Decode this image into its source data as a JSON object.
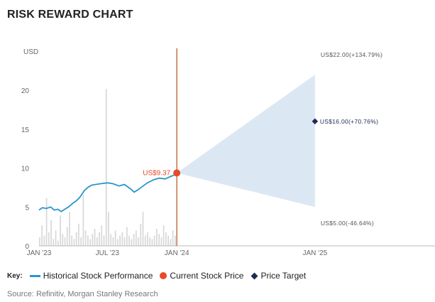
{
  "title": "RISK REWARD CHART",
  "key": {
    "label": "Key:",
    "items": [
      {
        "label": "Historical Stock Performance",
        "icon": "line-icon",
        "color": "#2a96cc"
      },
      {
        "label": "Current Stock Price",
        "icon": "dot-icon",
        "color": "#e84a2a"
      },
      {
        "label": "Price Target",
        "icon": "diamond-icon",
        "color": "#1f2a55"
      }
    ]
  },
  "source": "Source: Refinitiv, Morgan Stanley Research",
  "chart_data": {
    "type": "line",
    "ylabel": "USD",
    "ylim": [
      0,
      25
    ],
    "yticks": [
      0,
      5,
      10,
      15,
      20
    ],
    "x_ticks": [
      {
        "date": "2023-01-01",
        "label": "JAN '23"
      },
      {
        "date": "2023-07-01",
        "label": "JUL '23"
      },
      {
        "date": "2024-01-01",
        "label": "JAN '24"
      },
      {
        "date": "2025-01-01",
        "label": "JAN '25"
      }
    ],
    "xlim": [
      "2023-01-01",
      "2026-01-01"
    ],
    "grid": false,
    "series": [
      {
        "name": "Historical Stock Performance",
        "color": "#2a96cc",
        "points": [
          [
            "2023-01-01",
            4.6
          ],
          [
            "2023-01-10",
            4.9
          ],
          [
            "2023-01-20",
            4.8
          ],
          [
            "2023-02-01",
            5.0
          ],
          [
            "2023-02-10",
            4.6
          ],
          [
            "2023-02-20",
            4.7
          ],
          [
            "2023-03-01",
            4.4
          ],
          [
            "2023-03-10",
            4.7
          ],
          [
            "2023-03-20",
            5.0
          ],
          [
            "2023-04-01",
            5.5
          ],
          [
            "2023-04-10",
            5.8
          ],
          [
            "2023-04-20",
            6.3
          ],
          [
            "2023-05-01",
            7.1
          ],
          [
            "2023-05-10",
            7.5
          ],
          [
            "2023-05-20",
            7.8
          ],
          [
            "2023-06-01",
            7.9
          ],
          [
            "2023-06-15",
            8.0
          ],
          [
            "2023-07-01",
            8.1
          ],
          [
            "2023-07-15",
            8.0
          ],
          [
            "2023-08-01",
            7.7
          ],
          [
            "2023-08-15",
            7.9
          ],
          [
            "2023-09-01",
            7.3
          ],
          [
            "2023-09-10",
            6.9
          ],
          [
            "2023-09-20",
            7.2
          ],
          [
            "2023-10-01",
            7.6
          ],
          [
            "2023-10-15",
            8.1
          ],
          [
            "2023-11-01",
            8.5
          ],
          [
            "2023-11-15",
            8.7
          ],
          [
            "2023-12-01",
            8.6
          ],
          [
            "2023-12-15",
            8.9
          ],
          [
            "2023-12-25",
            9.1
          ],
          [
            "2024-01-01",
            9.37
          ]
        ]
      },
      {
        "name": "Trading Volume",
        "color": "#d9d9d9",
        "relative_heights": [
          0.05,
          0.12,
          0.06,
          0.28,
          0.08,
          0.15,
          0.04,
          0.09,
          0.03,
          0.18,
          0.07,
          0.05,
          0.11,
          0.2,
          0.06,
          0.04,
          0.08,
          0.13,
          0.05,
          0.3,
          0.09,
          0.06,
          0.04,
          0.07,
          0.1,
          0.05,
          0.08,
          0.12,
          0.06,
          0.92,
          0.2,
          0.07,
          0.05,
          0.09,
          0.04,
          0.06,
          0.08,
          0.05,
          0.11,
          0.06,
          0.04,
          0.07,
          0.09,
          0.05,
          0.13,
          0.2,
          0.06,
          0.08,
          0.05,
          0.04,
          0.06,
          0.1,
          0.07,
          0.05,
          0.12,
          0.08,
          0.06,
          0.04,
          0.09,
          0.06
        ]
      }
    ],
    "current_price": {
      "date": "2024-01-01",
      "value": 9.37,
      "label": "US$9.37",
      "color": "#e84a2a"
    },
    "price_target": {
      "date": "2025-01-01",
      "value": 16.0,
      "label": "US$16.00(+70.76%)",
      "color": "#1f2a55"
    },
    "bull_case": {
      "date": "2025-01-01",
      "value": 22.0,
      "label": "US$22.00(+134.79%)"
    },
    "bear_case": {
      "date": "2025-01-01",
      "value": 5.0,
      "label": "US$5.00(-46.64%)"
    },
    "range_fill_color": "#dbe8f4",
    "divider_color": "#b5501a"
  }
}
